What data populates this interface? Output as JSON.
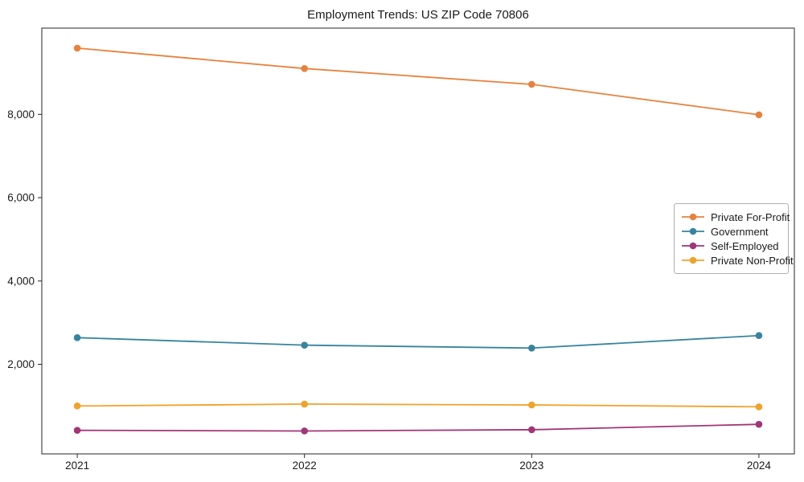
{
  "chart_data": {
    "type": "line",
    "title": "Employment Trends: US ZIP Code 70806",
    "x": [
      2021,
      2022,
      2023,
      2024
    ],
    "x_tick_labels": [
      "2021",
      "2022",
      "2023",
      "2024"
    ],
    "y_ticks": [
      2000,
      4000,
      6000,
      8000
    ],
    "y_tick_labels": [
      "2,000",
      "4,000",
      "6,000",
      "8,000"
    ],
    "ylim": [
      -150,
      10070
    ],
    "grid": false,
    "legend_position": "center-right",
    "axis_color": "#262626",
    "series": [
      {
        "name": "Private For-Profit",
        "color": "#e8813c",
        "values": [
          9590,
          9100,
          8720,
          7990
        ]
      },
      {
        "name": "Government",
        "color": "#36849f",
        "values": [
          2640,
          2460,
          2390,
          2690
        ]
      },
      {
        "name": "Self-Employed",
        "color": "#a23577",
        "values": [
          415,
          400,
          430,
          560
        ]
      },
      {
        "name": "Private Non-Profit",
        "color": "#f0a22a",
        "values": [
          1000,
          1045,
          1025,
          980
        ]
      }
    ]
  }
}
